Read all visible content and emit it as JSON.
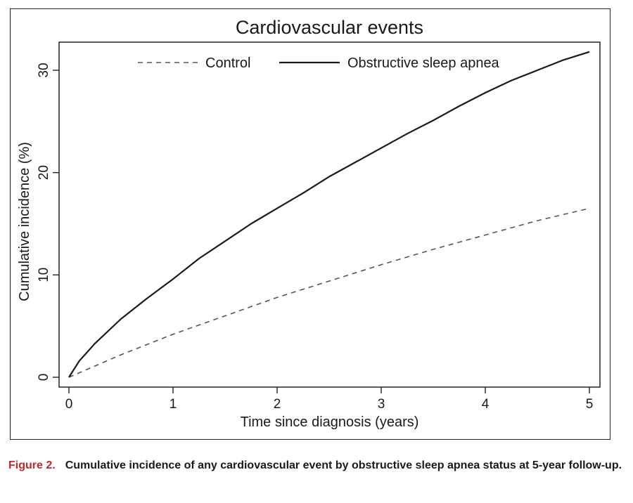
{
  "chart_data": {
    "type": "line",
    "title": "Cardiovascular events",
    "xlabel": "Time since diagnosis (years)",
    "ylabel": "Cumulative incidence (%)",
    "xlim": [
      0,
      5
    ],
    "ylim": [
      0,
      32
    ],
    "xticks": [
      "0",
      "1",
      "2",
      "3",
      "4",
      "5"
    ],
    "yticks": [
      "0",
      "10",
      "20",
      "30"
    ],
    "grid": false,
    "legend_position": "top",
    "series": [
      {
        "name": "Control",
        "style": "dashed",
        "color": "#555555",
        "x": [
          0,
          0.5,
          1,
          1.5,
          2,
          2.5,
          3,
          3.5,
          4,
          4.5,
          5
        ],
        "y": [
          0,
          2.2,
          4.2,
          6.0,
          7.8,
          9.4,
          11.0,
          12.5,
          13.9,
          15.3,
          16.5
        ]
      },
      {
        "name": "Obstructive sleep apnea",
        "style": "solid",
        "color": "#1a1a1a",
        "x": [
          0,
          0.1,
          0.25,
          0.5,
          0.75,
          1,
          1.25,
          1.5,
          1.75,
          2,
          2.25,
          2.5,
          2.75,
          3,
          3.25,
          3.5,
          3.75,
          4,
          4.25,
          4.5,
          4.75,
          5
        ],
        "y": [
          0,
          1.6,
          3.3,
          5.7,
          7.7,
          9.6,
          11.6,
          13.3,
          15.0,
          16.5,
          18.0,
          19.6,
          21.0,
          22.4,
          23.8,
          25.1,
          26.5,
          27.8,
          29.0,
          30.0,
          31.0,
          31.8
        ]
      }
    ]
  },
  "caption": {
    "label": "Figure 2.",
    "text": "Cumulative incidence of any cardiovascular event by obstructive sleep apnea status at 5-year follow-up."
  }
}
